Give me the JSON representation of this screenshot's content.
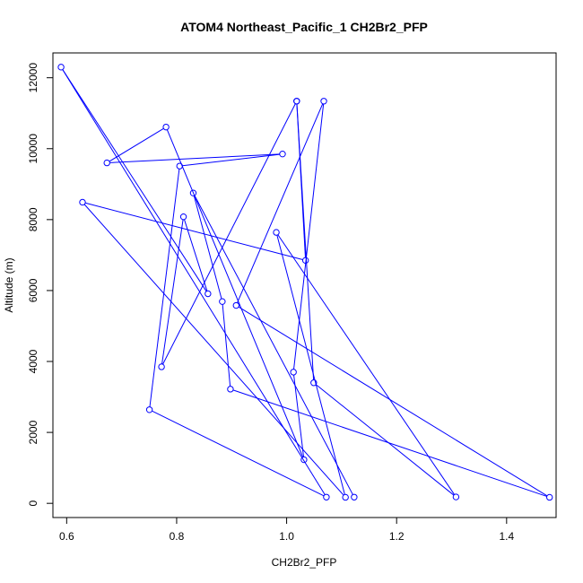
{
  "chart_data": {
    "type": "line",
    "title": "ATOM4 Northeast_Pacific_1 CH2Br2_PFP",
    "xlabel": "CH2Br2_PFP",
    "ylabel": "Altitude (m)",
    "xlim": [
      0.575,
      1.49
    ],
    "ylim": [
      -400,
      12700
    ],
    "x_ticks": [
      0.6,
      0.8,
      1.0,
      1.2,
      1.4
    ],
    "x_tick_labels": [
      "0.6",
      "0.8",
      "1.0",
      "1.2",
      "1.4"
    ],
    "y_ticks": [
      0,
      2000,
      4000,
      6000,
      8000,
      10000,
      12000
    ],
    "y_tick_labels": [
      "0",
      "2000",
      "4000",
      "6000",
      "8000",
      "10000",
      "12000"
    ],
    "line_color": "#0000ff",
    "marker": "open-circle",
    "grid": false,
    "legend": "none",
    "series": [
      {
        "x": [
          1.1228,
          0.8302,
          0.883,
          0.8978,
          1.4781,
          0.9082,
          1.0676,
          1.0124,
          1.0315,
          0.7807,
          0.6732,
          0.9925,
          0.8054,
          0.7505,
          1.0723,
          0.5898,
          0.8569,
          0.8124,
          0.7725,
          1.0183,
          1.0493,
          1.308,
          0.9812,
          1.107,
          0.6288,
          1.0344,
          1.0183
        ],
        "y": [
          175,
          8750,
          5690,
          3220,
          170,
          5580,
          11340,
          3700,
          1230,
          10610,
          9600,
          9850,
          9510,
          2640,
          175,
          12300,
          5910,
          8080,
          3850,
          11340,
          3400,
          180,
          7640,
          170,
          8490,
          6850,
          11340
        ]
      }
    ]
  }
}
